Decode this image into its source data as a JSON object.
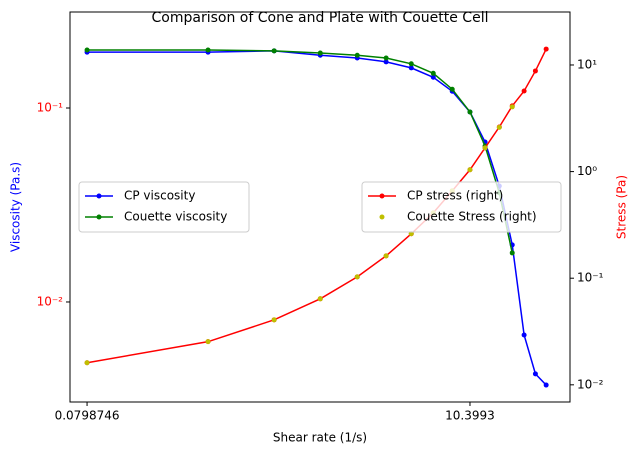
{
  "chart_data": {
    "type": "line",
    "title": "Comparison of Cone and Plate with Couette Cell",
    "x_label": "Shear rate (1/s)",
    "y_label": "Viscosity (Pa.s)",
    "y2_label": "Stress (Pa)",
    "y_label_color": "#0000ff",
    "y2_label_color": "#ff0000",
    "ytick_color": "#ff0000",
    "xscale": "log",
    "yscale": "log",
    "y2scale": "log",
    "xlim": [
      0.0643,
      37.1
    ],
    "ylim": [
      0.00305,
      0.3126
    ],
    "y2lim": [
      0.0069,
      31.4
    ],
    "xticks": [
      0.0798746,
      10.3993
    ],
    "yticks": [
      {
        "value": 0.01,
        "label": "10⁻²"
      },
      {
        "value": 0.1,
        "label": "10⁻¹"
      }
    ],
    "y2ticks": [
      {
        "value": 0.01,
        "label": "10⁻²"
      },
      {
        "value": 0.1,
        "label": "10⁻¹"
      },
      {
        "value": 1,
        "label": "10⁰"
      },
      {
        "value": 10,
        "label": "10¹"
      }
    ],
    "legend_y": "center left",
    "legend_y2": "center right",
    "x": [
      0.0798746,
      0.372,
      0.862,
      1.55,
      2.48,
      3.58,
      4.93,
      6.52,
      8.3,
      10.3993,
      12.6,
      15.1,
      17.8,
      20.7,
      23.9,
      27.4
    ],
    "series": [
      {
        "name": "CP viscosity",
        "color": "#0000ff",
        "axis": "y",
        "line": true,
        "values": [
          0.194,
          0.194,
          0.197,
          0.187,
          0.181,
          0.173,
          0.161,
          0.144,
          0.122,
          0.0954,
          0.0668,
          0.0396,
          0.0197,
          0.00676,
          0.00426,
          0.00373
        ]
      },
      {
        "name": "Couette viscosity",
        "color": "#008000",
        "axis": "y",
        "line": true,
        "values": [
          0.199,
          0.199,
          0.197,
          0.192,
          0.187,
          0.181,
          0.169,
          0.151,
          0.125,
          0.0954,
          0.0637,
          0.0365,
          0.0179,
          null,
          null,
          null
        ]
      },
      {
        "name": "CP stress (right)",
        "color": "#ff0000",
        "axis": "y2",
        "line": true,
        "values": [
          0.0161,
          0.0254,
          0.0407,
          0.0641,
          0.103,
          0.162,
          0.261,
          0.41,
          0.659,
          1.04,
          1.67,
          2.62,
          4.13,
          5.7,
          8.79,
          14.1
        ]
      },
      {
        "name": "Couette Stress (right)",
        "color": "#bfbf00",
        "axis": "y2",
        "line": false,
        "values": [
          0.0161,
          0.0254,
          0.0407,
          0.0641,
          0.103,
          0.162,
          0.261,
          0.41,
          0.659,
          1.04,
          1.67,
          2.6,
          4.05,
          null,
          null,
          null
        ]
      }
    ]
  }
}
